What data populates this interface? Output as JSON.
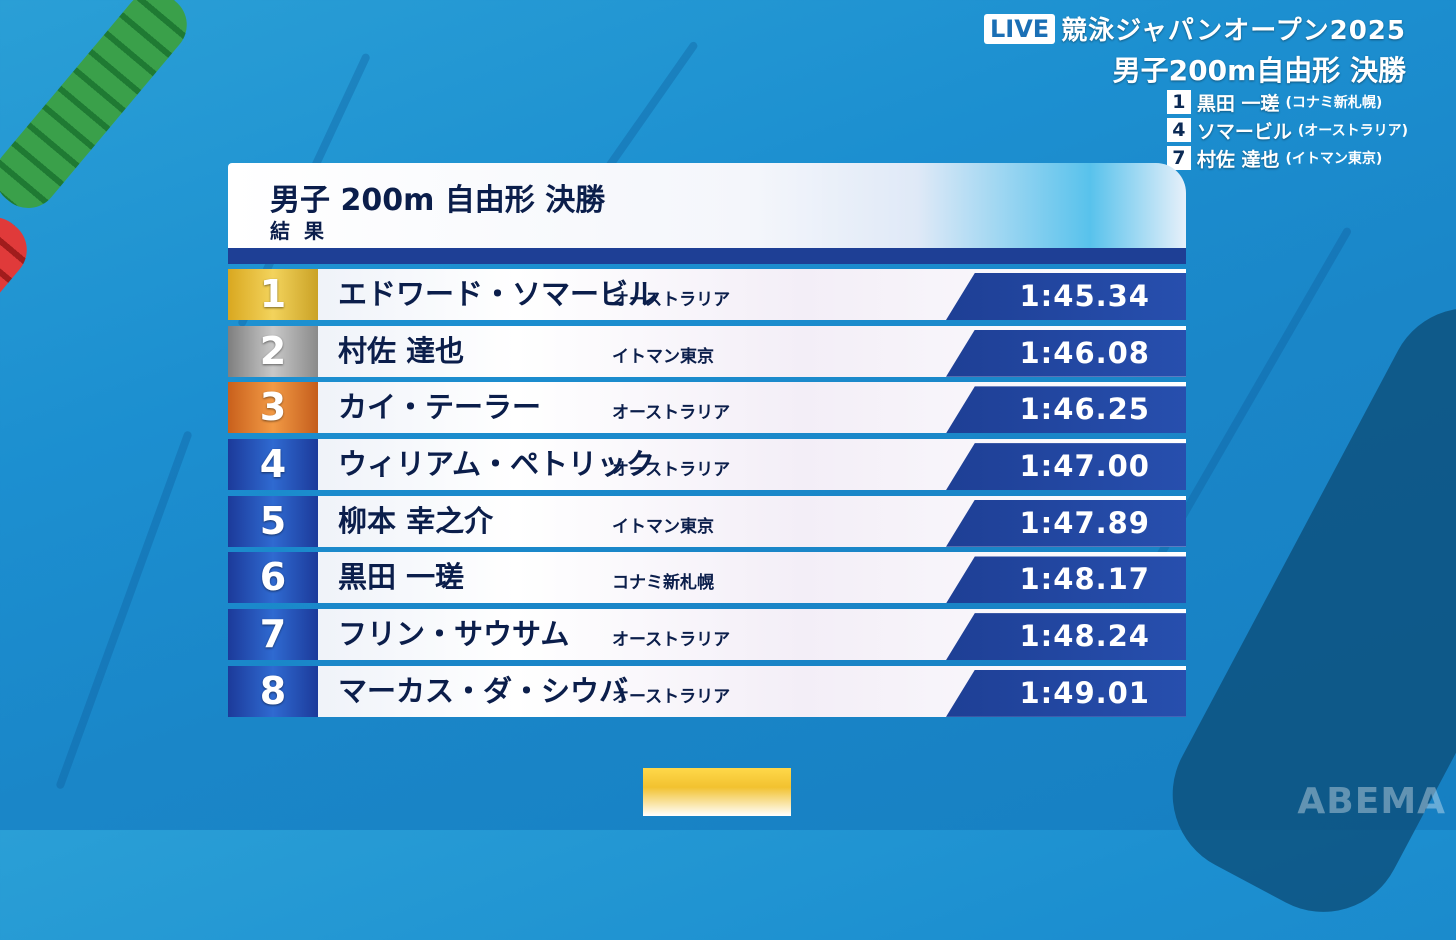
{
  "header": {
    "live_label": "LIVE",
    "event_title": "競泳ジャパンオープン2025",
    "race_title": "男子200m自由形 決勝"
  },
  "featured_lanes": [
    {
      "lane": "1",
      "name": "黒田 一瑳",
      "club": "(コナミ新札幌)"
    },
    {
      "lane": "4",
      "name": "ソマービル",
      "club": "(オーストラリア)"
    },
    {
      "lane": "7",
      "name": "村佐 達也",
      "club": "(イトマン東京)"
    }
  ],
  "board": {
    "title": "男子 200m 自由形 決勝",
    "subtitle": "結果",
    "results": [
      {
        "rank": "1",
        "name": "エドワード・ソマービル",
        "club": "オーストラリア",
        "time": "1:45.34",
        "medal": "gold"
      },
      {
        "rank": "2",
        "name": "村佐 達也",
        "club": "イトマン東京",
        "time": "1:46.08",
        "medal": "silver"
      },
      {
        "rank": "3",
        "name": "カイ・テーラー",
        "club": "オーストラリア",
        "time": "1:46.25",
        "medal": "bronze"
      },
      {
        "rank": "4",
        "name": "ウィリアム・ペトリック",
        "club": "オーストラリア",
        "time": "1:47.00",
        "medal": "blue"
      },
      {
        "rank": "5",
        "name": "柳本 幸之介",
        "club": "イトマン東京",
        "time": "1:47.89",
        "medal": "blue"
      },
      {
        "rank": "6",
        "name": "黒田 一瑳",
        "club": "コナミ新札幌",
        "time": "1:48.17",
        "medal": "blue"
      },
      {
        "rank": "7",
        "name": "フリン・サウサム",
        "club": "オーストラリア",
        "time": "1:48.24",
        "medal": "blue"
      },
      {
        "rank": "8",
        "name": "マーカス・ダ・シウバ",
        "club": "オーストラリア",
        "time": "1:49.01",
        "medal": "blue"
      }
    ]
  },
  "watermark": "ABEMA"
}
